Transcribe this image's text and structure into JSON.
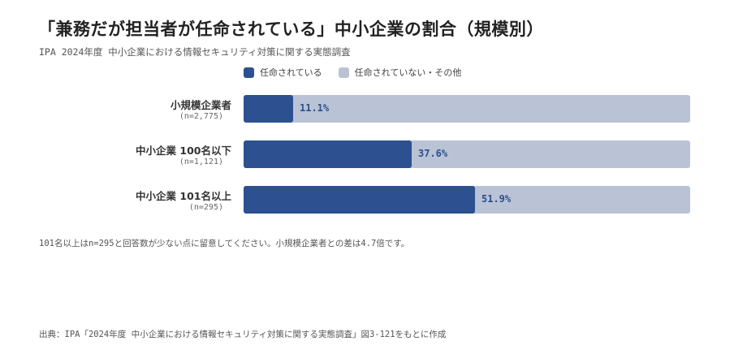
{
  "colors": {
    "assigned": "#2d5190",
    "not_assigned": "#b9c3d5",
    "value_text": "#2c4f8c"
  },
  "chart_data": {
    "type": "bar",
    "orientation": "horizontal",
    "stacked": true,
    "title": "「兼務だが担当者が任命されている」中小企業の割合（規模別）",
    "subtitle": "IPA 2024年度 中小企業における情報セキュリティ対策に関する実態調査",
    "legend_placement": "top",
    "xlim": [
      0,
      100
    ],
    "categories": [
      {
        "label": "小規模企業者",
        "n": "(n=2,775)"
      },
      {
        "label": "中小企業 100名以下",
        "n": "(n=1,121)"
      },
      {
        "label": "中小企業 101名以上",
        "n": "(n=295)"
      }
    ],
    "series": [
      {
        "name": "任命されている",
        "values": [
          11.1,
          37.6,
          51.9
        ]
      },
      {
        "name": "任命されていない・その他",
        "values": [
          88.9,
          62.4,
          48.1
        ]
      }
    ],
    "value_labels": [
      "11.1%",
      "37.6%",
      "51.9%"
    ]
  },
  "note": "101名以上はn=295と回答数が少ない点に留意してください。小規模企業者との差は4.7倍です。",
  "source": "出典：IPA「2024年度 中小企業における情報セキュリティ対策に関する実態調査」図3-121をもとに作成"
}
